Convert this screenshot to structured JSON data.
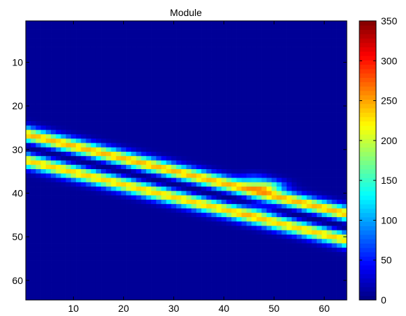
{
  "chart_data": {
    "type": "heatmap",
    "title": "Module",
    "xlabel": "",
    "ylabel": "",
    "grid": "off",
    "x_range": [
      0.5,
      64.5
    ],
    "y_range": [
      0.5,
      64.5
    ],
    "y_direction": "reversed",
    "x_ticks": [
      10,
      20,
      30,
      40,
      50,
      60
    ],
    "y_ticks": [
      10,
      20,
      30,
      40,
      50,
      60
    ],
    "x_tick_labels": [
      "10",
      "20",
      "30",
      "40",
      "50",
      "60"
    ],
    "y_tick_labels": [
      "10",
      "20",
      "30",
      "40",
      "50",
      "60"
    ],
    "colormap": "jet",
    "color_range": [
      0,
      350
    ],
    "colorbar_position": "right",
    "colorbar_ticks": [
      0,
      50,
      100,
      150,
      200,
      250,
      300,
      350
    ],
    "colorbar_tick_labels": [
      "0",
      "50",
      "100",
      "150",
      "200",
      "250",
      "300",
      "350"
    ],
    "background_value": 8,
    "bands": [
      {
        "x": [
          0.5,
          64.5
        ],
        "y": [
          26.5,
          44.8
        ],
        "sigma": 1.2,
        "amplitude": 235
      },
      {
        "x": [
          0.5,
          64.5
        ],
        "y": [
          32.5,
          50.8
        ],
        "sigma": 1.2,
        "amplitude": 225
      }
    ],
    "gaps": [
      {
        "x": [
          0.5,
          64.5
        ],
        "y": [
          29.5,
          47.8
        ],
        "sigma": 0.6,
        "depth": 0.88
      }
    ],
    "hotspots": [
      {
        "x": 49,
        "y": 38.2,
        "sigma_x": 2.2,
        "sigma_y": 0.9,
        "amplitude": 130
      },
      {
        "x": 46,
        "y": 36.8,
        "sigma_x": 2.0,
        "sigma_y": 0.9,
        "amplitude": 60
      },
      {
        "x": 47,
        "y": 43.5,
        "sigma_x": 2.5,
        "sigma_y": 1.2,
        "amplitude": 45
      }
    ]
  }
}
